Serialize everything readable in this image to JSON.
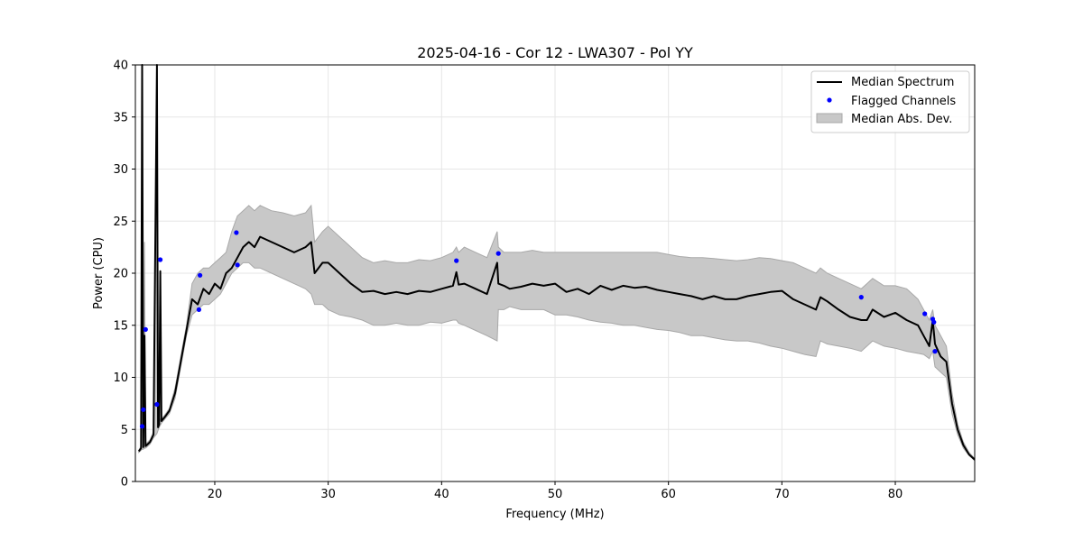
{
  "chart_data": {
    "type": "line",
    "title": "2025-04-16 - Cor 12 - LWA307 - Pol YY",
    "xlabel": "Frequency (MHz)",
    "ylabel": "Power (CPU)",
    "xlim": [
      13,
      87
    ],
    "ylim": [
      0,
      40
    ],
    "x_ticks": [
      20,
      30,
      40,
      50,
      60,
      70,
      80
    ],
    "x_tick_labels": [
      "20",
      "30",
      "40",
      "50",
      "60",
      "70",
      "80"
    ],
    "y_ticks": [
      0,
      5,
      10,
      15,
      20,
      25,
      30,
      35,
      40
    ],
    "y_tick_labels": [
      "0",
      "5",
      "10",
      "15",
      "20",
      "25",
      "30",
      "35",
      "40"
    ],
    "grid": true,
    "legend_position": "top-right",
    "legend": {
      "median": "Median Spectrum",
      "flagged": "Flagged Channels",
      "mad": "Median Abs. Dev."
    },
    "colors": {
      "median": "#000000",
      "flagged": "#0000ff",
      "mad_fill": "#c8c8c8",
      "mad_edge": "#a8a8a8",
      "grid": "#e6e6e6"
    },
    "series": [
      {
        "name": "Median Spectrum",
        "x": [
          13.3,
          13.5,
          13.6,
          13.7,
          13.8,
          13.9,
          14.0,
          14.3,
          14.6,
          14.9,
          15.0,
          15.1,
          15.2,
          15.3,
          15.6,
          16.0,
          16.5,
          17.0,
          17.5,
          18.0,
          18.5,
          19.0,
          19.5,
          20.0,
          20.5,
          21.0,
          21.5,
          22.0,
          22.5,
          23.0,
          23.5,
          24.0,
          25.0,
          26.0,
          27.0,
          28.0,
          28.5,
          28.8,
          29.5,
          30.0,
          31.0,
          32.0,
          33.0,
          34.0,
          35.0,
          36.0,
          37.0,
          38.0,
          39.0,
          40.0,
          41.0,
          41.3,
          41.5,
          42.0,
          43.0,
          44.0,
          44.9,
          45.0,
          45.5,
          46.0,
          47.0,
          48.0,
          49.0,
          50.0,
          51.0,
          52.0,
          53.0,
          54.0,
          55.0,
          56.0,
          57.0,
          58.0,
          59.0,
          60.0,
          61.0,
          62.0,
          63.0,
          64.0,
          65.0,
          66.0,
          67.0,
          68.0,
          69.0,
          70.0,
          71.0,
          72.0,
          73.0,
          73.4,
          74.0,
          75.0,
          76.0,
          77.0,
          77.5,
          78.0,
          79.0,
          80.0,
          81.0,
          82.0,
          82.5,
          83.0,
          83.3,
          83.5,
          84.0,
          84.5,
          85.0,
          85.5,
          86.0,
          86.5,
          87.0
        ],
        "values": [
          2.9,
          3.2,
          40.0,
          3.3,
          14.0,
          3.4,
          3.5,
          3.8,
          4.5,
          40.0,
          5.2,
          5.5,
          20.2,
          5.8,
          6.2,
          6.8,
          8.5,
          11.5,
          14.5,
          17.5,
          17.0,
          18.5,
          18.0,
          19.0,
          18.5,
          20.0,
          20.5,
          21.5,
          22.5,
          23.0,
          22.5,
          23.5,
          23.0,
          22.5,
          22.0,
          22.5,
          23.0,
          20.0,
          21.0,
          21.0,
          20.0,
          19.0,
          18.2,
          18.3,
          18.0,
          18.2,
          18.0,
          18.3,
          18.2,
          18.5,
          18.8,
          20.1,
          18.9,
          19.0,
          18.5,
          18.0,
          21.0,
          19.0,
          18.8,
          18.5,
          18.7,
          19.0,
          18.8,
          19.0,
          18.2,
          18.5,
          18.0,
          18.8,
          18.4,
          18.8,
          18.6,
          18.7,
          18.4,
          18.2,
          18.0,
          17.8,
          17.5,
          17.8,
          17.5,
          17.5,
          17.8,
          18.0,
          18.2,
          18.3,
          17.5,
          17.0,
          16.5,
          17.7,
          17.3,
          16.5,
          15.8,
          15.5,
          15.5,
          16.5,
          15.8,
          16.2,
          15.5,
          15.0,
          14.0,
          13.0,
          15.5,
          13.2,
          12.0,
          11.5,
          7.5,
          5.0,
          3.5,
          2.6,
          2.1
        ],
        "lower": [
          2.8,
          3.0,
          3.1,
          3.1,
          3.2,
          3.2,
          3.3,
          3.6,
          4.2,
          4.6,
          4.9,
          5.2,
          5.4,
          5.6,
          6.0,
          6.5,
          8.0,
          11.0,
          14.0,
          16.0,
          16.5,
          17.0,
          17.0,
          17.5,
          18.0,
          19.0,
          20.0,
          20.5,
          21.0,
          21.0,
          20.5,
          20.5,
          20.0,
          19.5,
          19.0,
          18.5,
          18.0,
          17.0,
          17.0,
          16.5,
          16.0,
          15.8,
          15.5,
          15.0,
          15.0,
          15.2,
          15.0,
          15.0,
          15.3,
          15.2,
          15.5,
          15.5,
          15.2,
          15.0,
          14.5,
          14.0,
          13.5,
          16.5,
          16.5,
          16.8,
          16.5,
          16.5,
          16.5,
          16.0,
          16.0,
          15.8,
          15.5,
          15.3,
          15.2,
          15.0,
          15.0,
          14.8,
          14.6,
          14.5,
          14.3,
          14.0,
          14.0,
          13.8,
          13.6,
          13.5,
          13.5,
          13.3,
          13.0,
          12.8,
          12.5,
          12.2,
          12.0,
          13.5,
          13.2,
          13.0,
          12.8,
          12.5,
          13.0,
          13.5,
          13.0,
          12.8,
          12.5,
          12.3,
          12.2,
          11.8,
          12.5,
          11.0,
          10.5,
          10.0,
          6.5,
          4.5,
          3.2,
          2.5,
          2.0
        ],
        "upper": [
          3.0,
          3.4,
          23.0,
          3.5,
          23.0,
          3.6,
          3.7,
          4.0,
          4.8,
          35.0,
          5.5,
          5.8,
          6.0,
          6.0,
          6.4,
          7.0,
          9.0,
          12.0,
          15.0,
          19.0,
          20.0,
          20.5,
          20.5,
          21.0,
          21.5,
          22.0,
          24.0,
          25.5,
          26.0,
          26.5,
          26.0,
          26.5,
          26.0,
          25.8,
          25.5,
          25.8,
          26.5,
          23.0,
          24.0,
          24.5,
          23.5,
          22.5,
          21.5,
          21.0,
          21.2,
          21.0,
          21.0,
          21.3,
          21.2,
          21.5,
          22.0,
          22.5,
          22.0,
          22.5,
          22.0,
          21.5,
          24.0,
          22.5,
          22.0,
          22.0,
          22.0,
          22.2,
          22.0,
          22.0,
          22.0,
          22.0,
          22.0,
          22.0,
          22.0,
          22.0,
          22.0,
          22.0,
          22.0,
          21.8,
          21.6,
          21.5,
          21.5,
          21.4,
          21.3,
          21.2,
          21.3,
          21.5,
          21.4,
          21.2,
          21.0,
          20.5,
          20.0,
          20.5,
          20.0,
          19.5,
          19.0,
          18.5,
          19.0,
          19.5,
          18.8,
          18.8,
          18.5,
          17.5,
          16.5,
          15.5,
          16.5,
          15.0,
          14.0,
          13.0,
          8.5,
          5.5,
          3.8,
          2.8,
          2.2
        ]
      },
      {
        "name": "Flagged Channels",
        "x": [
          13.6,
          13.7,
          13.9,
          14.9,
          15.2,
          18.6,
          18.7,
          21.9,
          22.0,
          41.3,
          45.0,
          77.0,
          82.6,
          83.3,
          83.4,
          83.5
        ],
        "values": [
          5.3,
          6.9,
          14.6,
          7.4,
          21.3,
          16.5,
          19.8,
          23.9,
          20.8,
          21.2,
          21.9,
          17.7,
          16.1,
          15.6,
          15.3,
          12.5
        ]
      }
    ]
  }
}
